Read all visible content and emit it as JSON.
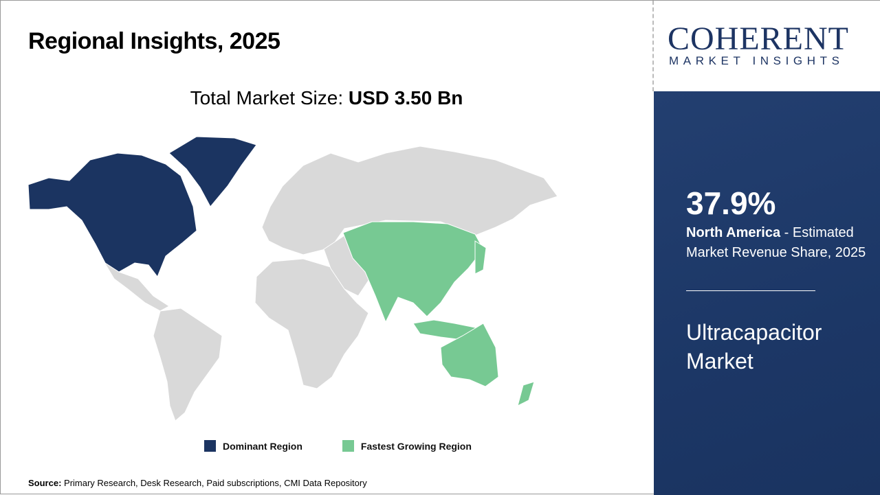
{
  "title": "Regional Insights, 2025",
  "market_size_label": "Total Market Size: ",
  "market_size_value": "USD 3.50 Bn",
  "logo": {
    "line1": "COHERENT",
    "line2": "MARKET INSIGHTS"
  },
  "highlight": {
    "percent": "37.9%",
    "region": "North America",
    "desc": " - Estimated Market Revenue Share, 2025",
    "market_name": "Ultracapacitor Market"
  },
  "legend": [
    {
      "label": "Dominant Region",
      "color": "#1b3461"
    },
    {
      "label": "Fastest Growing Region",
      "color": "#77c993"
    }
  ],
  "map": {
    "dominant_region": "North America",
    "fastest_growing_region": "Asia Pacific",
    "other_color": "#d9d9d9"
  },
  "source": {
    "label": "Source:",
    "text": " Primary Research, Desk Research, Paid subscriptions, CMI Data Repository"
  }
}
